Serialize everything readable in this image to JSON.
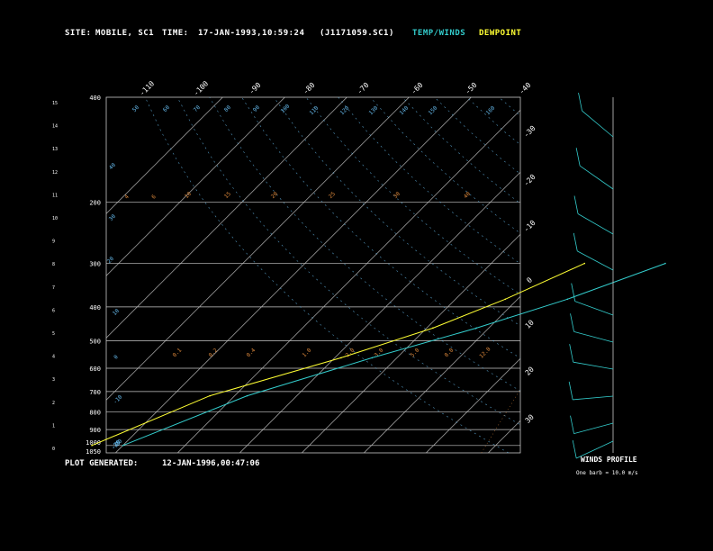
{
  "header": {
    "site_label": "SITE:",
    "site_value": "MOBILE, SC1",
    "time_label": "TIME:",
    "time_value": "17-JAN-1993,10:59:24",
    "file_value": "(J1171059.SC1)",
    "legend_temp": "TEMP/WINDS",
    "legend_dew": "DEWPOINT"
  },
  "footer": {
    "plot_label": "PLOT GENERATED:",
    "plot_value": "12-JAN-1996,00:47:06",
    "winds_title": "WINDS PROFILE",
    "winds_note": "One barb = 10.0 m/s"
  },
  "colors": {
    "background": "#000000",
    "grid": "#c8c8c8",
    "temperature": "#33cccc",
    "dewpoint": "#ffff33",
    "label": "#ffffff",
    "mixing_ratio": "#e08a3c",
    "dry_adiabat": "#66bbee"
  },
  "chart_data": {
    "type": "line",
    "title": "",
    "xlabel": "",
    "ylabel": "",
    "pressure_levels": [
      "400",
      "200",
      "300",
      "400",
      "500",
      "600",
      "700",
      "800",
      "900",
      "1000",
      "1050"
    ],
    "altitude_ticks": [
      "15",
      "14",
      "13",
      "12",
      "11",
      "10",
      "9",
      "8",
      "7",
      "6",
      "5",
      "4",
      "3",
      "2",
      "1",
      "0"
    ],
    "top_temp_ticks": [
      "-110",
      "-100",
      "-90",
      "-80",
      "-70",
      "-60",
      "-50",
      "-40"
    ],
    "right_temp_ticks": [
      "-30",
      "-20",
      "-10",
      "0",
      "10",
      "20",
      "30"
    ],
    "dry_adiabat_labels": [
      "50",
      "60",
      "70",
      "80",
      "90",
      "100",
      "110",
      "120",
      "130",
      "140",
      "150",
      "160",
      "40",
      "30",
      "20",
      "10",
      "0",
      "-10",
      "-20",
      "-30",
      "-35"
    ],
    "mixing_ratio_labels": [
      "4",
      "6",
      "10",
      "15",
      "20",
      "25",
      "30",
      "40",
      "0.1",
      "0.2",
      "0.4",
      "1.0",
      "2.0",
      "3.0",
      "5.0",
      "8.0",
      "12.0"
    ],
    "series": [
      {
        "name": "TEMP/WINDS",
        "points": [
          [
            300,
            -42
          ],
          [
            380,
            -52
          ],
          [
            460,
            -62
          ],
          [
            560,
            -74
          ],
          [
            720,
            -88
          ],
          [
            1000,
            -100
          ]
        ]
      },
      {
        "name": "DEWPOINT",
        "points": [
          [
            300,
            -55
          ],
          [
            380,
            -62
          ],
          [
            460,
            -69
          ],
          [
            560,
            -79
          ],
          [
            720,
            -94
          ],
          [
            1000,
            -105
          ]
        ]
      }
    ],
    "winds_profile": []
  }
}
